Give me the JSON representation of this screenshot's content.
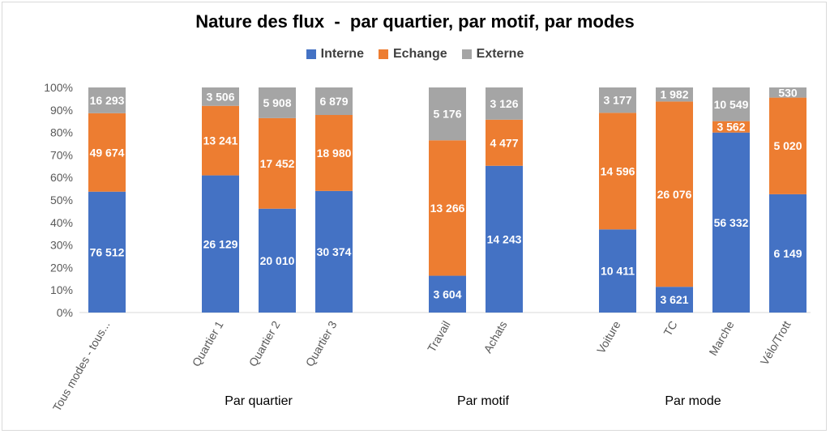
{
  "chart_data": {
    "type": "bar",
    "stacked": "percent",
    "title": "Nature des flux  -  par quartier, par motif, par modes",
    "ylim": [
      0,
      100
    ],
    "yticks": [
      "0%",
      "10%",
      "20%",
      "30%",
      "40%",
      "50%",
      "60%",
      "70%",
      "80%",
      "90%",
      "100%"
    ],
    "grid": false,
    "legend": "top-center",
    "categories": [
      "Tous modes - tous...",
      "Quartier 1",
      "Quartier 2",
      "Quartier 3",
      "Travail",
      "Achats",
      "Voiture",
      "TC",
      "Marche",
      "Vélo/Trott"
    ],
    "groups": [
      {
        "label": "",
        "members": [
          0
        ]
      },
      {
        "label": "Par quartier",
        "members": [
          1,
          2,
          3
        ]
      },
      {
        "label": "Par motif",
        "members": [
          4,
          5
        ]
      },
      {
        "label": "Par mode",
        "members": [
          6,
          7,
          8,
          9
        ]
      }
    ],
    "series": [
      {
        "name": "Interne",
        "color": "#4472c4",
        "values": [
          76512,
          26129,
          20010,
          30374,
          3604,
          14243,
          10411,
          3621,
          56332,
          6149
        ],
        "labels": [
          "76 512",
          "26 129",
          "20 010",
          "30 374",
          "3 604",
          "14 243",
          "10 411",
          "3 621",
          "56 332",
          "6 149"
        ]
      },
      {
        "name": "Echange",
        "color": "#ed7d31",
        "values": [
          49674,
          13241,
          17452,
          18980,
          13266,
          4477,
          14596,
          26076,
          3562,
          5020
        ],
        "labels": [
          "49 674",
          "13 241",
          "17 452",
          "18 980",
          "13 266",
          "4 477",
          "14 596",
          "26 076",
          "3 562",
          "5 020"
        ]
      },
      {
        "name": "Externe",
        "color": "#a5a5a5",
        "values": [
          16293,
          3506,
          5908,
          6879,
          5176,
          3126,
          3177,
          1982,
          10549,
          530
        ],
        "labels": [
          "16 293",
          "3 506",
          "5 908",
          "6 879",
          "5 176",
          "3 126",
          "3 177",
          "1 982",
          "10 549",
          "530"
        ]
      }
    ]
  }
}
